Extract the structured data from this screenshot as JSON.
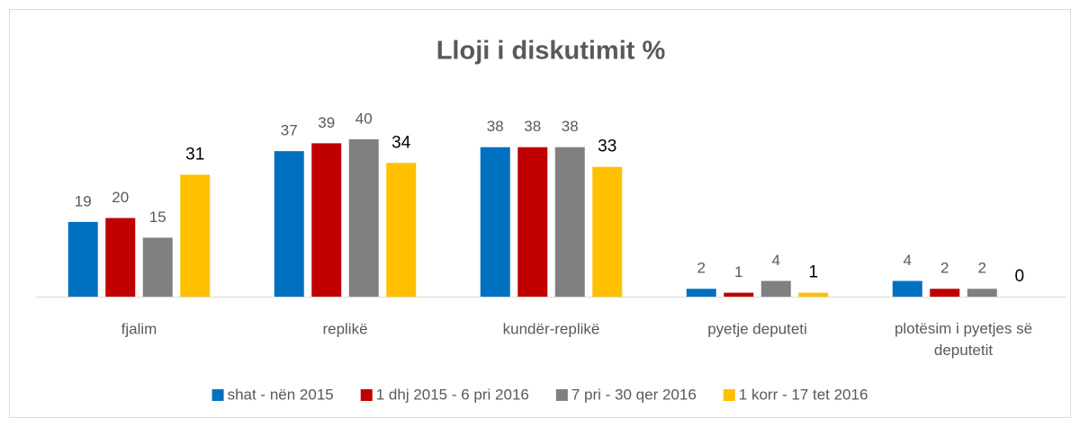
{
  "chart_data": {
    "type": "bar",
    "title": "Lloji i diskutimit %",
    "categories": [
      "fjalim",
      "replikë",
      "kundër-replikë",
      "pyetje deputeti",
      "plotësim i pyetjes së deputetit"
    ],
    "series": [
      {
        "name": "shat - nën 2015",
        "color": "#0070c0",
        "values": [
          19,
          37,
          38,
          2,
          4
        ]
      },
      {
        "name": "1 dhj 2015 - 6 pri 2016",
        "color": "#c00000",
        "values": [
          20,
          39,
          38,
          1,
          2
        ]
      },
      {
        "name": "7 pri - 30 qer 2016",
        "color": "#808080",
        "values": [
          15,
          40,
          38,
          4,
          2
        ]
      },
      {
        "name": "1 korr - 17 tet 2016",
        "color": "#ffc000",
        "values": [
          31,
          34,
          33,
          1,
          0
        ]
      }
    ]
  }
}
